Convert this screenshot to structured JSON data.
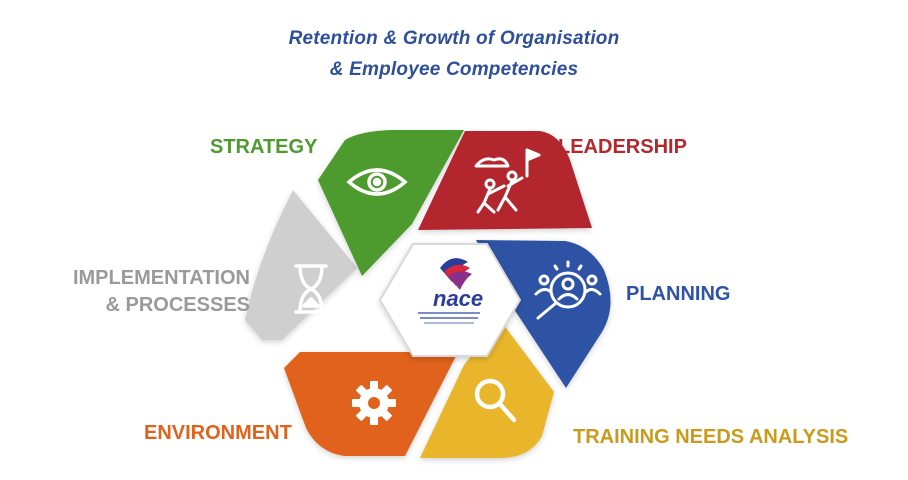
{
  "title": {
    "line1": "Retention & Growth of Organisation",
    "line2": "& Employee Competencies"
  },
  "center": {
    "logo_text": "nace"
  },
  "segments": [
    {
      "id": "strategy",
      "label": "STRATEGY",
      "color": "#4e9a2f",
      "icon": "eye-icon"
    },
    {
      "id": "leadership",
      "label": "LEADERSHIP",
      "color": "#b3282d",
      "icon": "climbing-team-icon"
    },
    {
      "id": "planning",
      "label": "PLANNING",
      "color": "#2f52a4",
      "icon": "people-search-icon"
    },
    {
      "id": "tna",
      "label": "TRAINING NEEDS ANALYSIS",
      "color": "#e9b52c",
      "label_color": "#c99a1c",
      "icon": "magnifier-icon"
    },
    {
      "id": "environment",
      "label": "ENVIRONMENT",
      "color": "#e0621f",
      "icon": "gear-icon"
    },
    {
      "id": "implementation",
      "label": "IMPLEMENTATION\n& PROCESSES",
      "color": "#cfcfcf",
      "label_color": "#9a9a9a",
      "icon": "hourglass-icon"
    }
  ]
}
